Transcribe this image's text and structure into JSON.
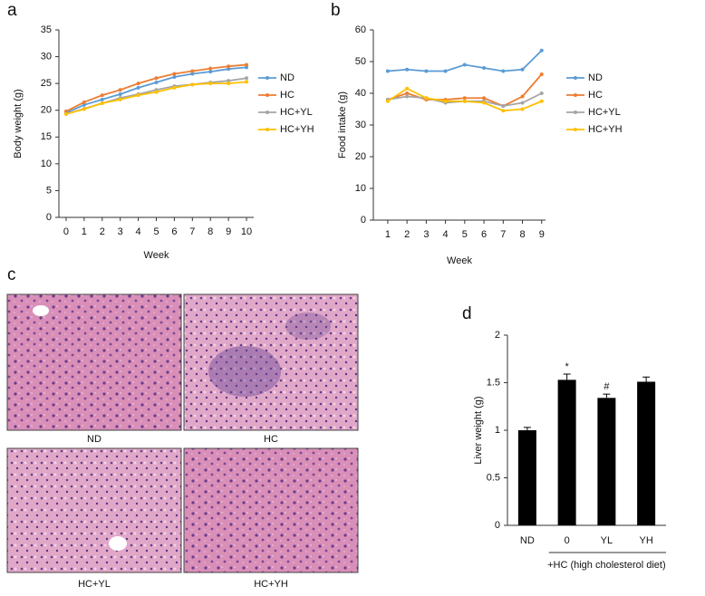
{
  "chart_data": [
    {
      "type": "line",
      "panel": "a",
      "x_label": "Week",
      "y_label": "Body weight (g)",
      "x": [
        0,
        1,
        2,
        3,
        4,
        5,
        6,
        7,
        8,
        9,
        10
      ],
      "xlim": [
        -0.4,
        10.4
      ],
      "xticks": [
        0,
        1,
        2,
        3,
        4,
        5,
        6,
        7,
        8,
        9,
        10
      ],
      "ylim": [
        0,
        35
      ],
      "yticks": [
        0,
        5,
        10,
        15,
        20,
        25,
        30,
        35
      ],
      "series": [
        {
          "name": "ND",
          "color": "#5b9bd5",
          "values": [
            19.5,
            21,
            22,
            23,
            24.2,
            25.2,
            26.2,
            26.8,
            27.2,
            27.7,
            28
          ]
        },
        {
          "name": "HC",
          "color": "#ed7d31",
          "values": [
            19.8,
            21.5,
            22.8,
            23.8,
            25,
            26,
            26.8,
            27.3,
            27.8,
            28.2,
            28.5
          ]
        },
        {
          "name": "HC+YL",
          "color": "#a5a5a5",
          "values": [
            19.3,
            20.3,
            21.3,
            22.3,
            23,
            23.8,
            24.5,
            24.8,
            25.2,
            25.5,
            26
          ]
        },
        {
          "name": "HC+YH",
          "color": "#ffc000",
          "values": [
            19.3,
            20.2,
            21.3,
            22,
            22.8,
            23.4,
            24.2,
            24.8,
            25,
            25,
            25.3
          ]
        }
      ]
    },
    {
      "type": "line",
      "panel": "b",
      "x_label": "Week",
      "y_label": "Food intake (g)",
      "x": [
        1,
        2,
        3,
        4,
        5,
        6,
        7,
        8,
        9
      ],
      "xlim": [
        0.25,
        9.2
      ],
      "xticks": [
        1,
        2,
        3,
        4,
        5,
        6,
        7,
        8,
        9
      ],
      "ylim": [
        0,
        60
      ],
      "yticks": [
        0,
        10,
        20,
        30,
        40,
        50,
        60
      ],
      "series": [
        {
          "name": "ND",
          "color": "#5b9bd5",
          "values": [
            47,
            47.5,
            47,
            47,
            49,
            48,
            47,
            47.5,
            53.5
          ]
        },
        {
          "name": "HC",
          "color": "#ed7d31",
          "values": [
            38,
            40,
            38,
            38,
            38.5,
            38.5,
            36,
            39,
            46
          ]
        },
        {
          "name": "HC+YL",
          "color": "#a5a5a5",
          "values": [
            38,
            39,
            38.5,
            37,
            37.5,
            37.5,
            36,
            37,
            40
          ]
        },
        {
          "name": "HC+YH",
          "color": "#ffc000",
          "values": [
            37.5,
            41.5,
            38.5,
            37.5,
            37.5,
            37,
            34.5,
            35,
            37.5
          ]
        }
      ]
    },
    {
      "type": "bar",
      "panel": "d",
      "y_label": "Liver weight (g)",
      "group_label": "+HC (high cholesterol diet)",
      "categories": [
        "ND",
        "0",
        "YL",
        "YH"
      ],
      "values": [
        1.0,
        1.53,
        1.34,
        1.51
      ],
      "errors": [
        0.03,
        0.06,
        0.04,
        0.05
      ],
      "markers": [
        null,
        "*",
        "#",
        null
      ],
      "color": "#000000",
      "ylim": [
        0,
        2
      ],
      "yticks": [
        0,
        0.5,
        1,
        1.5,
        2
      ]
    }
  ],
  "histology": {
    "panel": "c",
    "captions": [
      "ND",
      "HC",
      "HC+YL",
      "HC+YH"
    ]
  }
}
